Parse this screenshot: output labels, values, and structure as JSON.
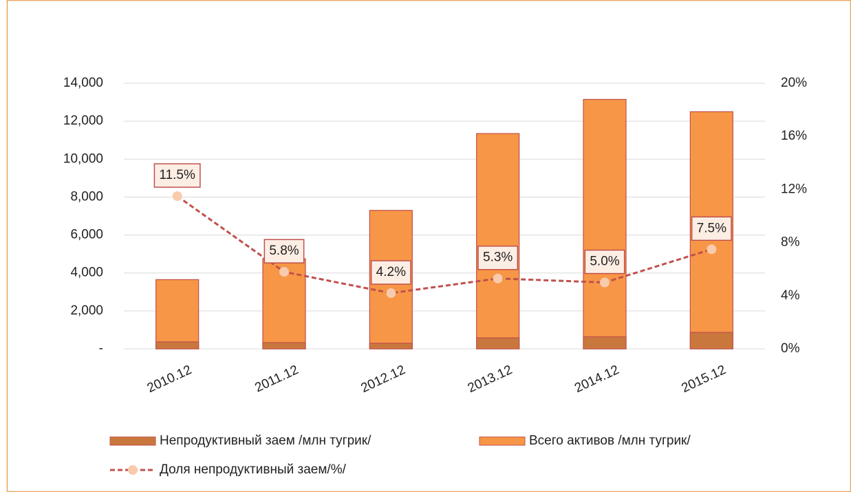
{
  "chart_data": {
    "type": "bar_line",
    "categories": [
      "2010.12",
      "2011.12",
      "2012.12",
      "2013.12",
      "2014.12",
      "2015.12"
    ],
    "series": [
      {
        "name": "Непродуктивный заем /млн тугрик/",
        "type": "bar",
        "color": "#c9773d",
        "values": [
          370,
          330,
          300,
          580,
          640,
          870
        ]
      },
      {
        "name": "Всего активов /млн тугрик/",
        "type": "bar",
        "color": "#f79646",
        "values": [
          3650,
          4750,
          7300,
          11350,
          13150,
          12500
        ]
      },
      {
        "name": "Доля непродуктивный заем/%/",
        "type": "line",
        "axis": "y2",
        "color": "#c0504d",
        "marker_color": "#f8cbad",
        "values": [
          11.5,
          5.8,
          4.2,
          5.3,
          5.0,
          7.5
        ],
        "value_labels": [
          "11.5%",
          "5.8%",
          "4.2%",
          "5.3%",
          "5.0%",
          "7.5%"
        ]
      }
    ],
    "ylim": [
      0,
      14000
    ],
    "yticks": [
      {
        "value": 0,
        "label": "-"
      },
      {
        "value": 2000,
        "label": "2,000"
      },
      {
        "value": 4000,
        "label": "4,000"
      },
      {
        "value": 6000,
        "label": "6,000"
      },
      {
        "value": 8000,
        "label": "8,000"
      },
      {
        "value": 10000,
        "label": "10,000"
      },
      {
        "value": 12000,
        "label": "12,000"
      },
      {
        "value": 14000,
        "label": "14,000"
      }
    ],
    "y2lim": [
      0,
      20
    ],
    "y2ticks": [
      {
        "value": 0,
        "label": "0%"
      },
      {
        "value": 4,
        "label": "4%"
      },
      {
        "value": 8,
        "label": "8%"
      },
      {
        "value": 12,
        "label": "12%"
      },
      {
        "value": 16,
        "label": "16%"
      },
      {
        "value": 20,
        "label": "20%"
      }
    ],
    "grid": true,
    "legend": "bottom"
  }
}
